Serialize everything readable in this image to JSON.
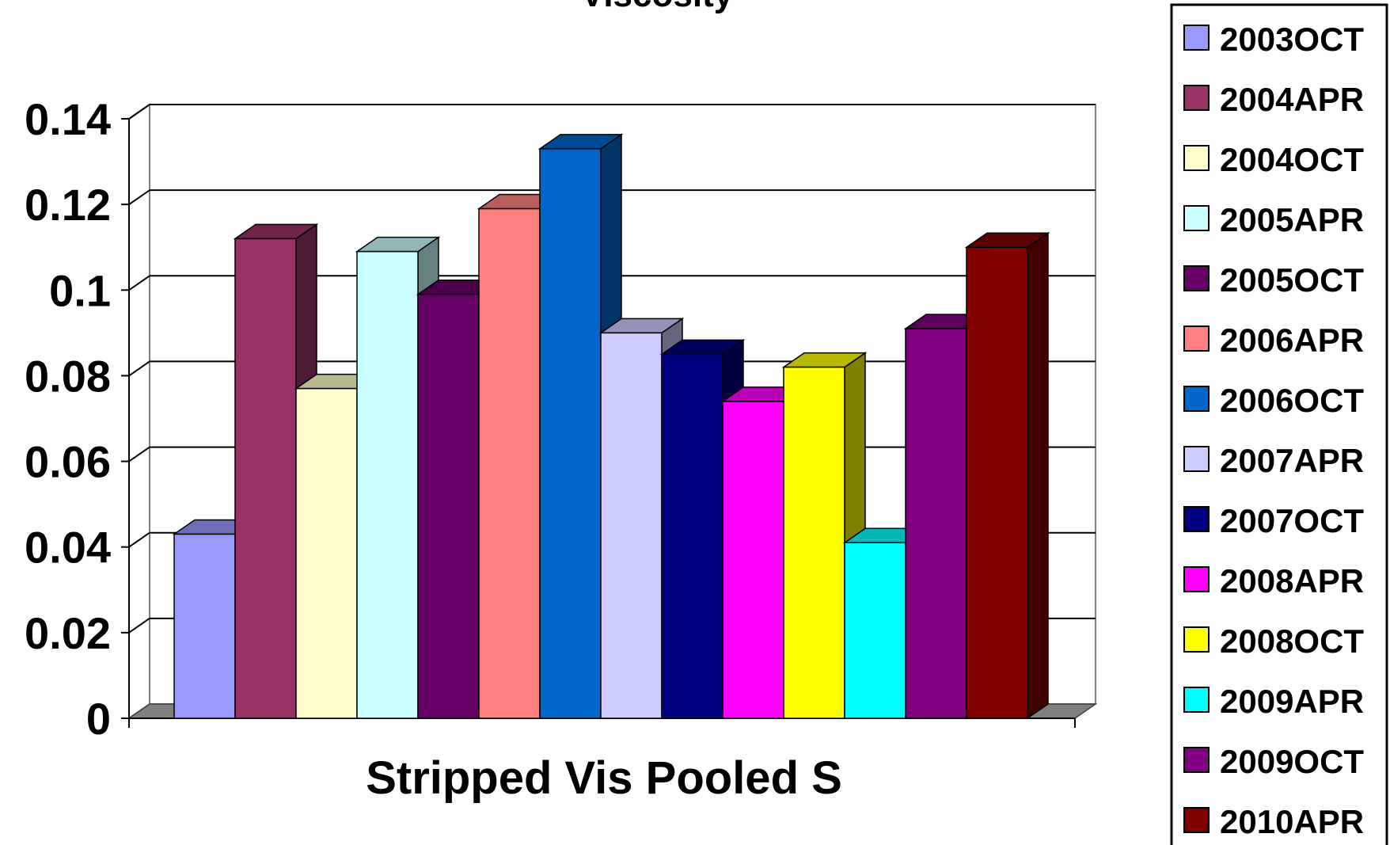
{
  "chart_data": {
    "type": "bar",
    "title": "Viscosity",
    "xlabel": "Stripped Vis Pooled S",
    "ylabel": "",
    "categories": [
      "Stripped Vis Pooled S"
    ],
    "ylim": [
      0,
      0.14
    ],
    "yticks": [
      "0",
      "0.02",
      "0.04",
      "0.06",
      "0.08",
      "0.1",
      "0.12",
      "0.14"
    ],
    "grid": true,
    "legend_position": "right",
    "three_d": true,
    "series": [
      {
        "name": "2003OCT",
        "value": 0.043,
        "color": "#9999FF"
      },
      {
        "name": "2004APR",
        "value": 0.112,
        "color": "#993366"
      },
      {
        "name": "2004OCT",
        "value": 0.077,
        "color": "#FFFFCC"
      },
      {
        "name": "2005APR",
        "value": 0.109,
        "color": "#CCFFFF"
      },
      {
        "name": "2005OCT",
        "value": 0.099,
        "color": "#660066"
      },
      {
        "name": "2006APR",
        "value": 0.119,
        "color": "#FF8080"
      },
      {
        "name": "2006OCT",
        "value": 0.133,
        "color": "#0066CC"
      },
      {
        "name": "2007APR",
        "value": 0.09,
        "color": "#CCCCFF"
      },
      {
        "name": "2007OCT",
        "value": 0.085,
        "color": "#000080"
      },
      {
        "name": "2008APR",
        "value": 0.074,
        "color": "#FF00FF"
      },
      {
        "name": "2008OCT",
        "value": 0.082,
        "color": "#FFFF00"
      },
      {
        "name": "2009APR",
        "value": 0.041,
        "color": "#00FFFF"
      },
      {
        "name": "2009OCT",
        "value": 0.091,
        "color": "#800080"
      },
      {
        "name": "2010APR",
        "value": 0.11,
        "color": "#800000"
      }
    ]
  }
}
